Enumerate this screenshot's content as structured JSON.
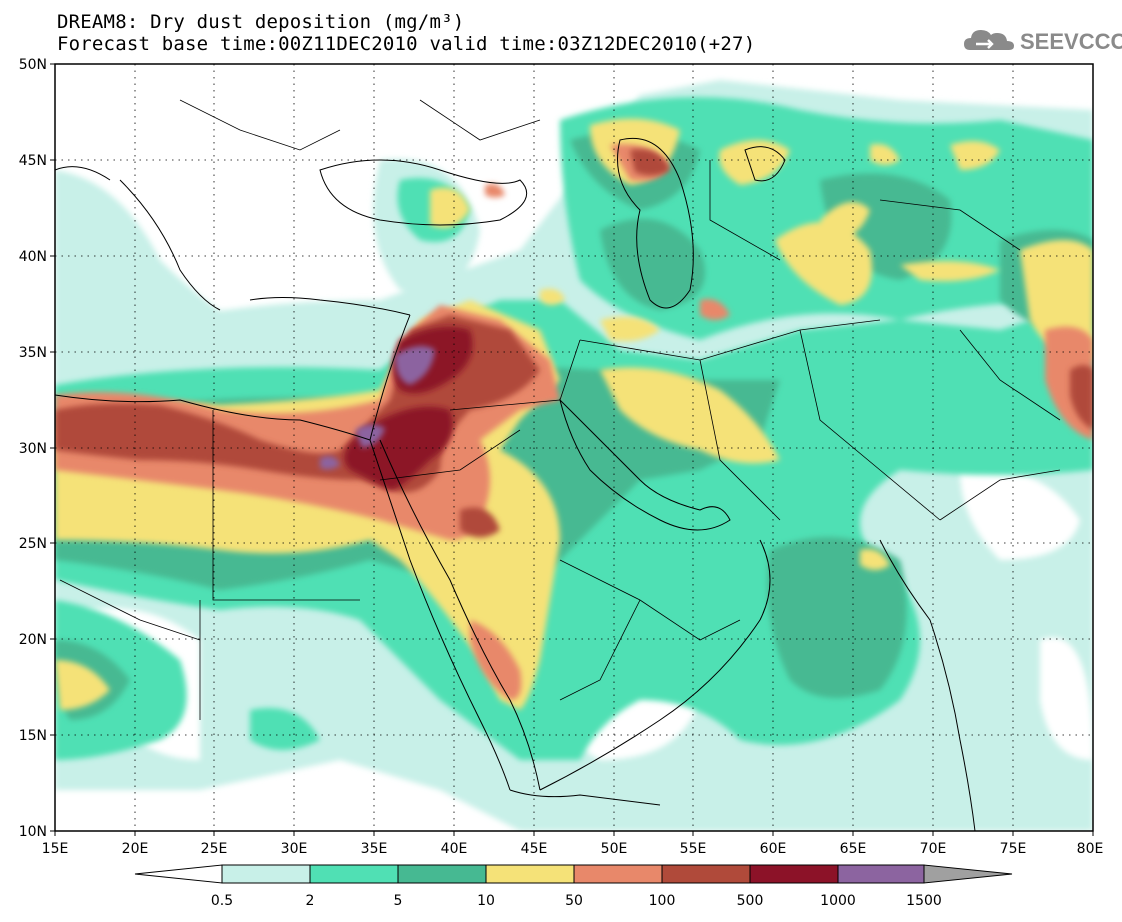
{
  "title": {
    "line1": "DREAM8: Dry dust deposition (mg/m³)",
    "line2": "Forecast base time:00Z11DEC2010 valid time:03Z12DEC2010(+27)"
  },
  "logo": {
    "text": "SEEVCCC",
    "icon": "cloud-icon"
  },
  "map": {
    "lat_labels": [
      "50N",
      "45N",
      "40N",
      "35N",
      "30N",
      "25N",
      "20N",
      "15N",
      "10N"
    ],
    "lon_labels": [
      "15E",
      "20E",
      "25E",
      "30E",
      "35E",
      "40E",
      "45E",
      "50E",
      "55E",
      "60E",
      "65E",
      "70E",
      "75E",
      "80E"
    ]
  },
  "colorbar": {
    "labels": [
      "0.5",
      "2",
      "5",
      "10",
      "50",
      "100",
      "500",
      "1000",
      "1500"
    ],
    "colors": [
      "#ffffff",
      "#c8f0e8",
      "#50e0b4",
      "#46b992",
      "#f5e278",
      "#e8886a",
      "#b04a3a",
      "#8c1228",
      "#8c64a0",
      "#a0a0a0"
    ]
  }
}
